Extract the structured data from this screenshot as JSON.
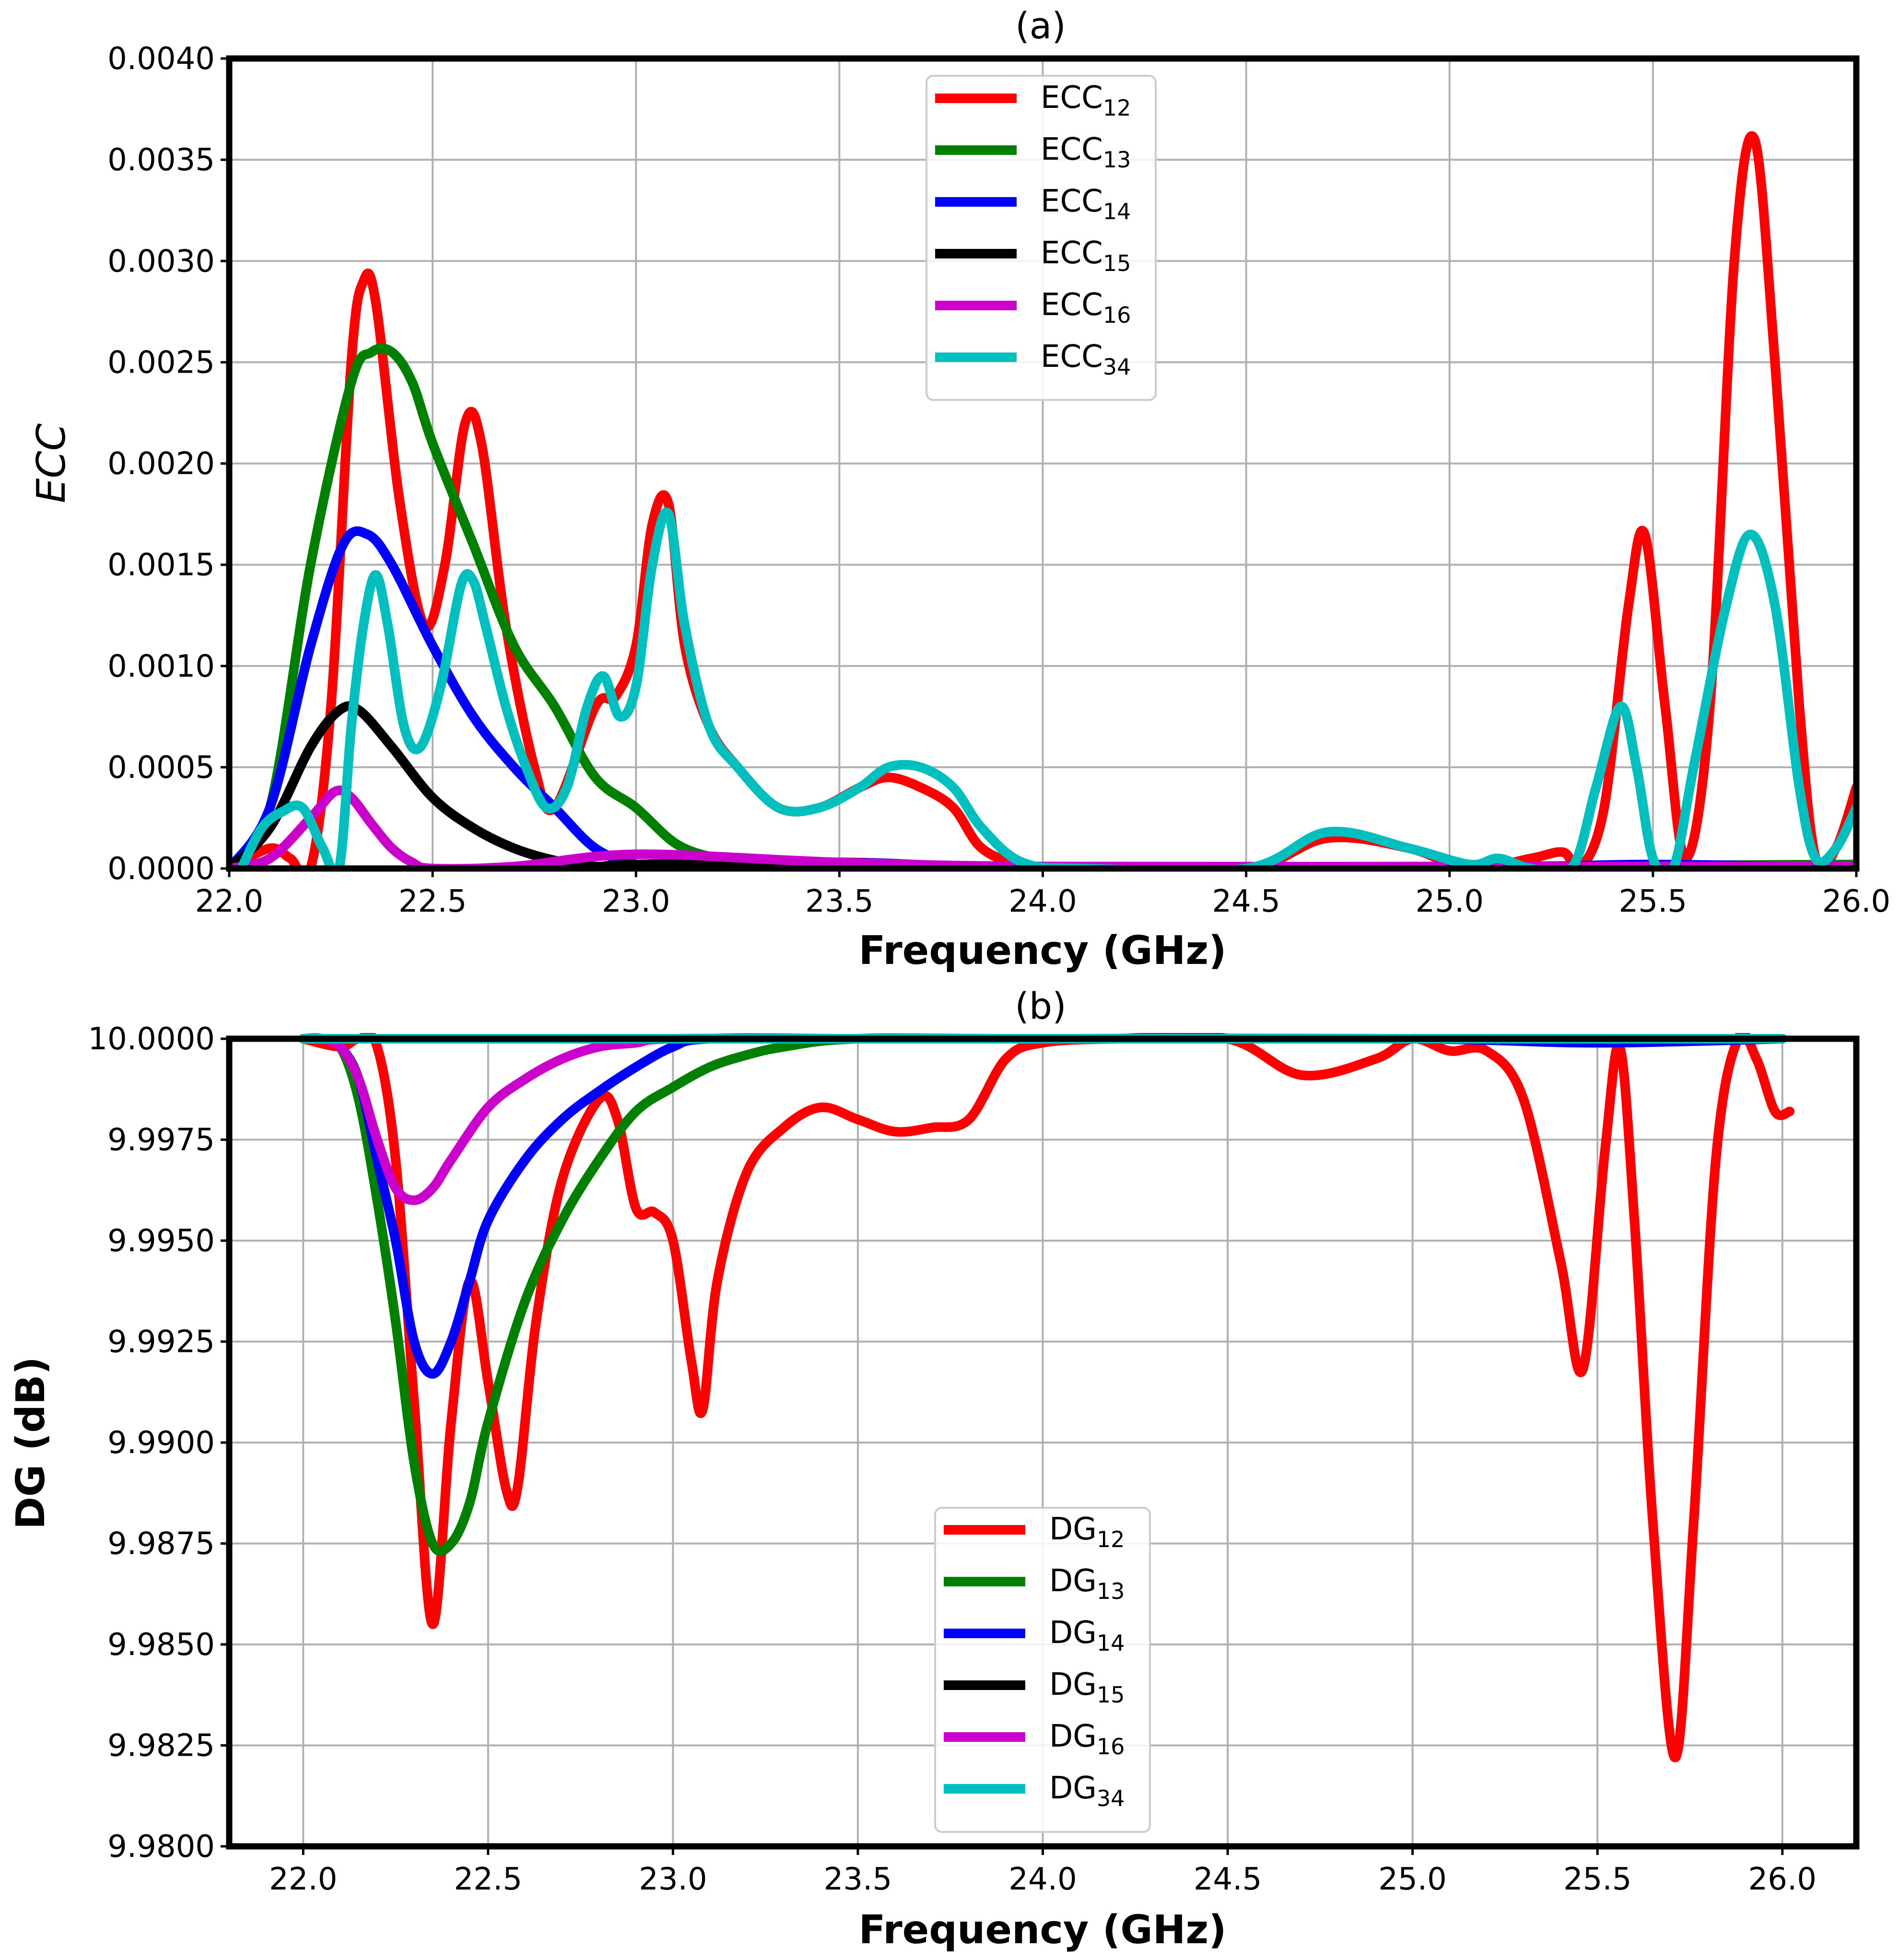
{
  "chart_data": [
    {
      "type": "line",
      "title": "(a)",
      "xlabel": "Frequency (GHz)",
      "ylabel": "ECC",
      "xlim": [
        22.0,
        26.0
      ],
      "ylim": [
        0.0,
        0.004
      ],
      "xticks": [
        "22.0",
        "22.5",
        "23.0",
        "23.5",
        "24.0",
        "24.5",
        "25.0",
        "25.5",
        "26.0"
      ],
      "yticks": [
        "0.0000",
        "0.0005",
        "0.0010",
        "0.0015",
        "0.0020",
        "0.0025",
        "0.0030",
        "0.0035",
        "0.0040"
      ],
      "xtick_values": [
        22.0,
        22.5,
        23.0,
        23.5,
        24.0,
        24.5,
        25.0,
        25.5,
        26.0
      ],
      "ytick_values": [
        0.0,
        0.0005,
        0.001,
        0.0015,
        0.002,
        0.0025,
        0.003,
        0.0035,
        0.004
      ],
      "grid": true,
      "legend_position": "top-center",
      "series": [
        {
          "name": "ECC",
          "sub": "12",
          "color": "#ff0000",
          "x": [
            22.0,
            22.1,
            22.15,
            22.2,
            22.25,
            22.3,
            22.33,
            22.36,
            22.42,
            22.48,
            22.53,
            22.58,
            22.62,
            22.68,
            22.75,
            22.8,
            22.9,
            22.95,
            23.0,
            23.04,
            23.08,
            23.12,
            23.18,
            23.25,
            23.35,
            23.45,
            23.55,
            23.62,
            23.7,
            23.78,
            23.85,
            23.95,
            24.1,
            24.5,
            24.7,
            24.9,
            25.05,
            25.2,
            25.28,
            25.32,
            25.38,
            25.44,
            25.48,
            25.53,
            25.58,
            25.64,
            25.7,
            25.75,
            25.8,
            25.86,
            25.9,
            25.95,
            26.0
          ],
          "y": [
            0.0,
            0.0001,
            5e-05,
            0.0,
            0.0008,
            0.0025,
            0.0029,
            0.0028,
            0.0018,
            0.0012,
            0.0015,
            0.0022,
            0.0021,
            0.0012,
            0.0005,
            0.0003,
            0.0008,
            0.00085,
            0.0011,
            0.0017,
            0.0018,
            0.0011,
            0.0007,
            0.0005,
            0.0003,
            0.0003,
            0.0004,
            0.00045,
            0.0004,
            0.0003,
            0.0001,
            2e-05,
            0.0,
            0.0,
            0.00015,
            0.0001,
            0.0,
            5e-05,
            8e-05,
            0.0,
            0.0003,
            0.0013,
            0.00165,
            0.0008,
            5e-05,
            0.0008,
            0.003,
            0.0036,
            0.0025,
            0.0008,
            5e-05,
            0.0001,
            0.0004
          ]
        },
        {
          "name": "ECC",
          "sub": "13",
          "color": "#008000",
          "x": [
            22.0,
            22.1,
            22.2,
            22.3,
            22.35,
            22.4,
            22.45,
            22.5,
            22.6,
            22.7,
            22.8,
            22.9,
            23.0,
            23.1,
            23.2,
            23.3,
            23.5,
            24.0,
            26.0
          ],
          "y": [
            0.0,
            0.0003,
            0.0015,
            0.0024,
            0.00255,
            0.00255,
            0.0024,
            0.0021,
            0.0016,
            0.0011,
            0.0008,
            0.00045,
            0.0003,
            0.00012,
            5e-05,
            2e-05,
            0.0,
            0.0,
            2e-05
          ]
        },
        {
          "name": "ECC",
          "sub": "14",
          "color": "#0000ff",
          "x": [
            22.0,
            22.1,
            22.2,
            22.28,
            22.34,
            22.4,
            22.5,
            22.6,
            22.7,
            22.8,
            22.9,
            23.0,
            23.1,
            23.5,
            24.0,
            25.0,
            25.5,
            26.0
          ],
          "y": [
            0.0,
            0.0003,
            0.0011,
            0.0016,
            0.00165,
            0.0015,
            0.0011,
            0.00075,
            0.0005,
            0.0003,
            0.0001,
            2e-05,
            0.0,
            3e-05,
            0.0,
            0.0,
            2e-05,
            0.0
          ]
        },
        {
          "name": "ECC",
          "sub": "15",
          "color": "#000000",
          "x": [
            22.0,
            22.1,
            22.2,
            22.27,
            22.32,
            22.4,
            22.5,
            22.6,
            22.7,
            22.8,
            22.9,
            23.0,
            23.5,
            24.0,
            26.0
          ],
          "y": [
            0.0,
            0.0002,
            0.0006,
            0.00078,
            0.00078,
            0.0006,
            0.00035,
            0.0002,
            0.0001,
            4e-05,
            1e-05,
            2e-05,
            3e-05,
            0.0,
            0.0
          ]
        },
        {
          "name": "ECC",
          "sub": "16",
          "color": "#cc00cc",
          "x": [
            22.0,
            22.1,
            22.2,
            22.26,
            22.3,
            22.35,
            22.4,
            22.45,
            22.5,
            22.7,
            23.0,
            23.5,
            24.0,
            25.0,
            26.0
          ],
          "y": [
            0.0,
            5e-05,
            0.00025,
            0.00038,
            0.00035,
            0.00022,
            0.0001,
            3e-05,
            0.0,
            1e-05,
            7e-05,
            3e-05,
            1e-05,
            1e-05,
            1e-05
          ]
        },
        {
          "name": "ECC",
          "sub": "34",
          "color": "#00bfbf",
          "x": [
            22.03,
            22.08,
            22.13,
            22.18,
            22.23,
            22.27,
            22.3,
            22.33,
            22.36,
            22.39,
            22.43,
            22.47,
            22.52,
            22.57,
            22.6,
            22.63,
            22.68,
            22.73,
            22.78,
            22.83,
            22.88,
            22.92,
            22.96,
            23.0,
            23.04,
            23.08,
            23.12,
            23.18,
            23.25,
            23.35,
            23.45,
            23.55,
            23.62,
            23.7,
            23.78,
            23.85,
            23.95,
            24.1,
            24.5,
            24.7,
            24.9,
            25.05,
            25.12,
            25.2,
            25.3,
            25.36,
            25.42,
            25.46,
            25.5,
            25.55,
            25.6,
            25.68,
            25.74,
            25.8,
            25.86,
            25.9,
            25.95,
            26.0
          ],
          "y": [
            0.0,
            0.0002,
            0.00028,
            0.0003,
            0.0001,
            0.0,
            0.0007,
            0.0012,
            0.00145,
            0.0012,
            0.0007,
            0.0006,
            0.0009,
            0.0014,
            0.00142,
            0.0012,
            0.0008,
            0.0005,
            0.0003,
            0.0004,
            0.0008,
            0.00095,
            0.00075,
            0.0009,
            0.0015,
            0.00175,
            0.0012,
            0.0007,
            0.0005,
            0.0003,
            0.0003,
            0.0004,
            0.0005,
            0.0005,
            0.0004,
            0.0002,
            3e-05,
            0.0,
            0.0,
            0.00018,
            0.0001,
            2e-05,
            5e-05,
            0.0,
            0.0,
            0.0004,
            0.0008,
            0.0005,
            5e-05,
            0.0,
            0.0005,
            0.0013,
            0.00165,
            0.0013,
            0.0004,
            5e-05,
            0.0001,
            0.0003
          ]
        }
      ]
    },
    {
      "type": "line",
      "title": "(b)",
      "xlabel": "Frequency (GHz)",
      "ylabel": "DG (dB)",
      "xlim": [
        21.8,
        26.2
      ],
      "ylim": [
        9.98,
        10.0
      ],
      "xticks": [
        "22.0",
        "22.5",
        "23.0",
        "23.5",
        "24.0",
        "24.5",
        "25.0",
        "25.5",
        "26.0"
      ],
      "yticks": [
        "9.9800",
        "9.9825",
        "9.9850",
        "9.9875",
        "9.9900",
        "9.9925",
        "9.9950",
        "9.9975",
        "10.0000"
      ],
      "xtick_values": [
        22.0,
        22.5,
        23.0,
        23.5,
        24.0,
        24.5,
        25.0,
        25.5,
        26.0
      ],
      "ytick_values": [
        9.98,
        9.9825,
        9.985,
        9.9875,
        9.99,
        9.9925,
        9.995,
        9.9975,
        10.0
      ],
      "grid": true,
      "legend_position": "lower-center",
      "series": [
        {
          "name": "DG",
          "sub": "12",
          "color": "#ff0000",
          "x": [
            22.0,
            22.1,
            22.15,
            22.2,
            22.25,
            22.3,
            22.35,
            22.4,
            22.45,
            22.5,
            22.55,
            22.58,
            22.63,
            22.7,
            22.8,
            22.85,
            22.9,
            22.95,
            23.0,
            23.05,
            23.08,
            23.12,
            23.2,
            23.3,
            23.4,
            23.5,
            23.6,
            23.7,
            23.8,
            23.9,
            24.0,
            24.2,
            24.5,
            24.7,
            24.9,
            25.0,
            25.1,
            25.2,
            25.3,
            25.4,
            25.46,
            25.52,
            25.56,
            25.6,
            25.65,
            25.71,
            25.76,
            25.82,
            25.88,
            25.93,
            25.98,
            26.02
          ],
          "y": [
            10.0,
            9.9998,
            10.0,
            9.9998,
            9.997,
            9.991,
            9.9855,
            9.9905,
            9.994,
            9.9915,
            9.9888,
            9.9889,
            9.993,
            9.9965,
            9.9985,
            9.998,
            9.9958,
            9.9957,
            9.995,
            9.992,
            9.9908,
            9.994,
            9.9967,
            9.9978,
            9.9983,
            9.998,
            9.9977,
            9.9978,
            9.998,
            9.9995,
            9.9999,
            10.0,
            10.0,
            9.9991,
            9.9995,
            10.0,
            9.9997,
            9.9997,
            9.9985,
            9.9945,
            9.9918,
            9.9972,
            9.9998,
            9.9955,
            9.988,
            9.9822,
            9.988,
            9.997,
            10.0,
            9.9995,
            9.9982,
            9.9982
          ]
        },
        {
          "name": "DG",
          "sub": "13",
          "color": "#008000",
          "x": [
            22.0,
            22.05,
            22.1,
            22.15,
            22.2,
            22.25,
            22.3,
            22.35,
            22.4,
            22.45,
            22.5,
            22.6,
            22.7,
            22.8,
            22.9,
            23.0,
            23.1,
            23.2,
            23.3,
            23.5,
            24.0,
            26.0
          ],
          "y": [
            10.0,
            10.0,
            9.9998,
            9.9985,
            9.996,
            9.993,
            9.9895,
            9.9875,
            9.9875,
            9.9885,
            9.9905,
            9.9935,
            9.9955,
            9.997,
            9.9982,
            9.9988,
            9.9993,
            9.9996,
            9.9998,
            10.0,
            10.0,
            10.0
          ]
        },
        {
          "name": "DG",
          "sub": "14",
          "color": "#0000ff",
          "x": [
            22.0,
            22.05,
            22.1,
            22.15,
            22.2,
            22.25,
            22.3,
            22.35,
            22.4,
            22.45,
            22.5,
            22.6,
            22.7,
            22.8,
            22.9,
            23.0,
            23.1,
            23.5,
            24.0,
            25.0,
            25.5,
            26.0
          ],
          "y": [
            10.0,
            10.0,
            9.9998,
            9.999,
            9.997,
            9.995,
            9.9925,
            9.9917,
            9.9925,
            9.994,
            9.9955,
            9.997,
            9.998,
            9.9987,
            9.9993,
            9.9998,
            10.0,
            10.0,
            10.0,
            10.0,
            9.9999,
            10.0
          ]
        },
        {
          "name": "DG",
          "sub": "15",
          "color": "#000000",
          "x": [
            22.0,
            23.0,
            24.0,
            25.0,
            26.0
          ],
          "y": [
            10.0,
            10.0,
            10.0,
            10.0,
            10.0
          ]
        },
        {
          "name": "DG",
          "sub": "16",
          "color": "#cc00cc",
          "x": [
            22.0,
            22.05,
            22.1,
            22.15,
            22.2,
            22.25,
            22.3,
            22.35,
            22.4,
            22.5,
            22.6,
            22.7,
            22.8,
            22.9,
            23.0,
            23.5,
            24.0,
            26.0
          ],
          "y": [
            10.0,
            10.0,
            9.9998,
            9.999,
            9.9975,
            9.9963,
            9.996,
            9.9963,
            9.997,
            9.9983,
            9.999,
            9.9995,
            9.9998,
            9.9999,
            10.0,
            10.0,
            10.0,
            10.0
          ]
        },
        {
          "name": "DG",
          "sub": "34",
          "color": "#00bfbf",
          "x": [
            22.0,
            23.0,
            24.0,
            25.0,
            26.0
          ],
          "y": [
            10.0,
            10.0,
            10.0,
            10.0,
            10.0
          ]
        }
      ]
    }
  ]
}
